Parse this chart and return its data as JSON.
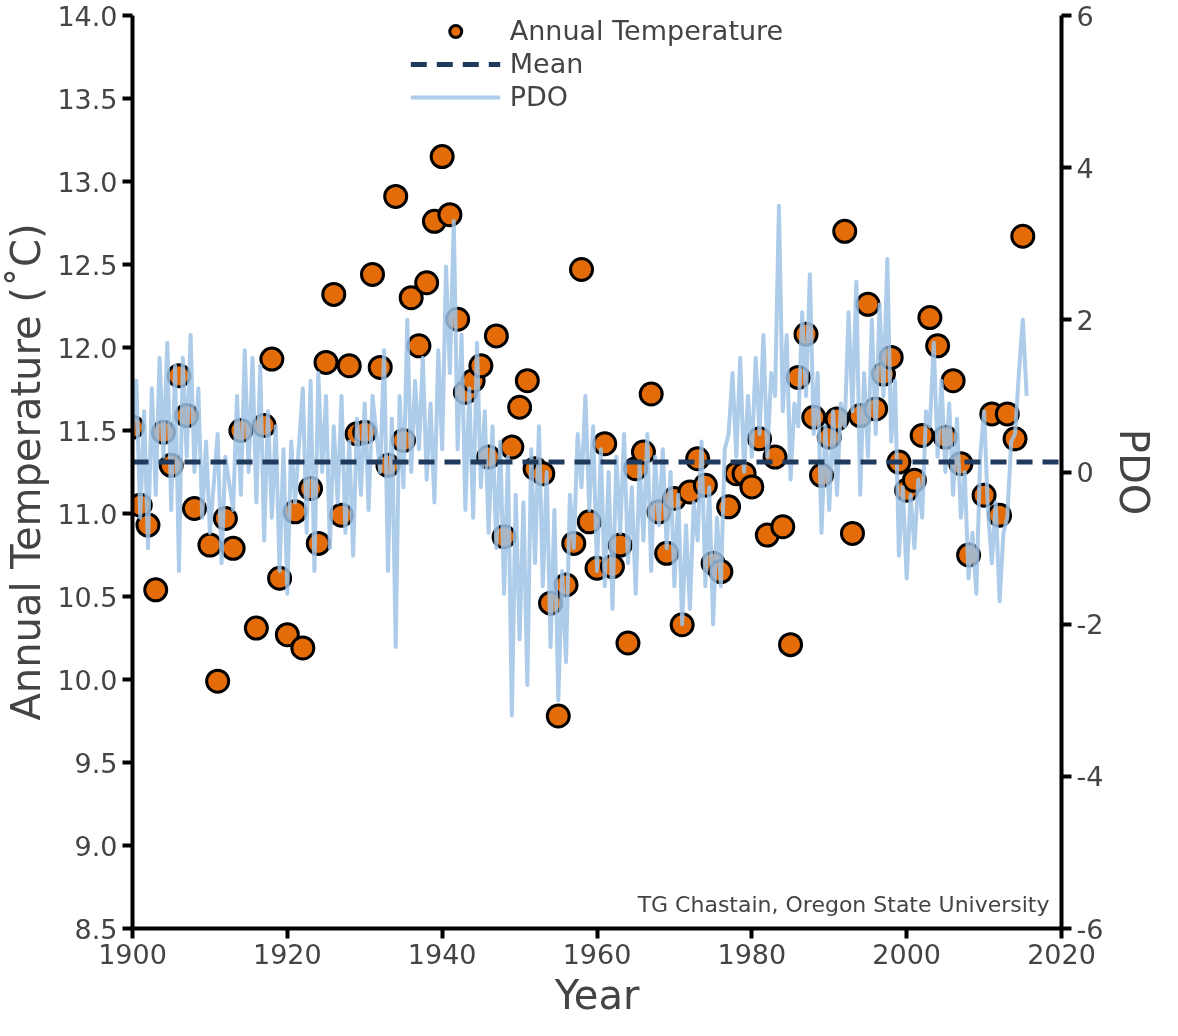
{
  "chart_data": {
    "type": "scatter",
    "xlabel": "Year",
    "ylabel": "Annual Temperature (˚C)",
    "y2label": "PDO",
    "xlim": [
      1900,
      2020
    ],
    "xticks": [
      1900,
      1920,
      1940,
      1960,
      1980,
      2000,
      2020
    ],
    "ylim": [
      8.5,
      14.0
    ],
    "yticks": [
      {
        "value": 8.5,
        "label": "8.5"
      },
      {
        "value": 9.0,
        "label": "9.0"
      },
      {
        "value": 9.5,
        "label": "9.5"
      },
      {
        "value": 10.0,
        "label": "10.0"
      },
      {
        "value": 10.5,
        "label": "10.5"
      },
      {
        "value": 11.0,
        "label": "11.0"
      },
      {
        "value": 11.5,
        "label": "11.5"
      },
      {
        "value": 12.0,
        "label": "12.0"
      },
      {
        "value": 12.5,
        "label": "12.5"
      },
      {
        "value": 13.0,
        "label": "13.0"
      },
      {
        "value": 13.5,
        "label": "13.5"
      },
      {
        "value": 14.0,
        "label": "14.0"
      }
    ],
    "y2lim": [
      -6,
      6
    ],
    "y2ticks": [
      -6,
      -4,
      -2,
      0,
      2,
      4,
      6
    ],
    "grid": false,
    "legend": "top",
    "ref_lines": [
      {
        "axis": "y",
        "value": 11.31,
        "label": "Mean",
        "color": "#1f3a5c",
        "line_style": "dashed"
      }
    ],
    "annotations": [
      {
        "text": "TG Chastain, Oregon State University"
      }
    ],
    "series": [
      {
        "name": "Annual Temperature",
        "marker": "circle",
        "color": "#e36c09",
        "x": [
          1900,
          1901,
          1902,
          1903,
          1904,
          1905,
          1906,
          1907,
          1908,
          1910,
          1911,
          1912,
          1913,
          1914,
          1916,
          1917,
          1918,
          1919,
          1920,
          1921,
          1922,
          1923,
          1924,
          1925,
          1926,
          1927,
          1928,
          1929,
          1930,
          1931,
          1932,
          1933,
          1934,
          1935,
          1936,
          1937,
          1938,
          1939,
          1940,
          1941,
          1942,
          1943,
          1944,
          1945,
          1946,
          1947,
          1948,
          1949,
          1950,
          1951,
          1952,
          1953,
          1954,
          1955,
          1956,
          1957,
          1958,
          1959,
          1960,
          1961,
          1962,
          1963,
          1964,
          1965,
          1966,
          1967,
          1968,
          1969,
          1970,
          1971,
          1972,
          1973,
          1974,
          1975,
          1976,
          1977,
          1978,
          1979,
          1980,
          1981,
          1982,
          1983,
          1984,
          1985,
          1986,
          1987,
          1988,
          1989,
          1990,
          1991,
          1992,
          1993,
          1994,
          1995,
          1996,
          1997,
          1998,
          1999,
          2000,
          2001,
          2002,
          2003,
          2004,
          2005,
          2006,
          2007,
          2008,
          2010,
          2011,
          2012,
          2013,
          2014,
          2015
        ],
        "values": [
          11.52,
          11.05,
          10.93,
          10.54,
          11.49,
          11.29,
          11.83,
          11.59,
          11.03,
          10.81,
          9.99,
          10.97,
          10.79,
          11.5,
          10.31,
          11.53,
          11.93,
          10.61,
          10.27,
          11.01,
          10.19,
          11.15,
          10.82,
          11.91,
          12.32,
          10.99,
          11.89,
          11.48,
          11.49,
          12.44,
          11.88,
          11.29,
          12.91,
          11.44,
          12.3,
          12.01,
          12.39,
          12.76,
          13.15,
          12.8,
          12.17,
          11.73,
          11.8,
          11.89,
          11.34,
          12.07,
          10.86,
          11.4,
          11.64,
          11.8,
          11.27,
          11.24,
          10.46,
          9.78,
          10.57,
          10.82,
          12.47,
          10.95,
          10.67,
          11.42,
          10.68,
          10.81,
          10.22,
          11.27,
          11.37,
          11.72,
          11.01,
          10.76,
          11.09,
          10.33,
          11.13,
          11.33,
          11.17,
          10.7,
          10.65,
          11.04,
          11.24,
          11.24,
          11.16,
          11.45,
          10.87,
          11.34,
          10.92,
          10.21,
          11.82,
          12.08,
          11.58,
          11.23,
          11.46,
          11.57,
          12.7,
          10.88,
          11.59,
          12.26,
          11.63,
          11.84,
          11.94,
          11.31,
          11.14,
          11.2,
          11.47,
          12.18,
          12.01,
          11.46,
          11.8,
          11.3,
          10.75,
          11.11,
          11.6,
          10.99,
          11.6,
          11.45,
          12.67
        ]
      },
      {
        "name": "PDO",
        "type": "line",
        "axis": "y2",
        "color": "#9dc3e6",
        "x": [
          1900,
          1900.5,
          1901,
          1901.5,
          1902,
          1902.5,
          1903,
          1903.5,
          1904,
          1904.5,
          1905,
          1905.5,
          1906,
          1906.5,
          1907,
          1907.5,
          1908,
          1908.5,
          1909,
          1909.5,
          1910,
          1911,
          1911.5,
          1912,
          1913,
          1913.5,
          1914,
          1914.5,
          1915,
          1915.5,
          1916,
          1916.5,
          1917,
          1917.5,
          1918,
          1918.5,
          1919,
          1919.5,
          1920,
          1920.5,
          1921,
          1922,
          1922.5,
          1923,
          1923.5,
          1924,
          1924.5,
          1925,
          1925.5,
          1926,
          1926.5,
          1927,
          1927.5,
          1928,
          1928.5,
          1929,
          1929.5,
          1930,
          1930.5,
          1931,
          1932,
          1932.5,
          1933,
          1933.5,
          1934,
          1934.5,
          1935,
          1935.5,
          1936,
          1936.5,
          1937,
          1937.5,
          1938,
          1938.5,
          1939,
          1939.5,
          1940,
          1940.5,
          1941,
          1941.5,
          1942,
          1942.5,
          1943,
          1943.5,
          1944,
          1944.5,
          1945,
          1945.5,
          1946,
          1946.5,
          1947,
          1947.5,
          1948,
          1948.5,
          1949,
          1949.5,
          1950,
          1950.5,
          1951,
          1951.5,
          1952,
          1952.5,
          1953,
          1953.5,
          1954,
          1954.5,
          1955,
          1955.5,
          1956,
          1956.5,
          1957,
          1957.5,
          1958,
          1958.5,
          1959,
          1959.5,
          1960,
          1960.5,
          1961,
          1961.5,
          1962,
          1962.5,
          1963,
          1963.5,
          1964,
          1964.5,
          1965,
          1965.5,
          1966,
          1966.5,
          1967,
          1967.5,
          1968,
          1968.5,
          1969,
          1969.5,
          1970,
          1970.5,
          1971,
          1971.5,
          1972,
          1972.5,
          1973,
          1973.5,
          1974,
          1974.5,
          1975,
          1975.5,
          1976,
          1976.5,
          1977,
          1977.5,
          1978,
          1978.5,
          1979,
          1979.5,
          1980,
          1980.5,
          1981,
          1981.5,
          1982,
          1982.5,
          1983,
          1983.5,
          1984,
          1984.5,
          1985,
          1985.5,
          1986,
          1986.5,
          1987,
          1987.5,
          1988,
          1988.5,
          1989,
          1989.5,
          1990,
          1990.5,
          1991,
          1991.5,
          1992,
          1992.5,
          1993,
          1993.5,
          1994,
          1994.5,
          1995,
          1995.5,
          1996,
          1996.5,
          1997,
          1997.5,
          1998,
          1998.5,
          1999,
          1999.5,
          2000,
          2000.5,
          2001,
          2001.5,
          2002,
          2002.5,
          2003,
          2003.5,
          2004,
          2004.5,
          2005,
          2005.5,
          2006,
          2006.5,
          2007,
          2007.5,
          2008,
          2008.5,
          2009,
          2009.5,
          2010,
          2010.5,
          2011,
          2011.5,
          2012,
          2012.5,
          2013,
          2013.5,
          2014,
          2014.5,
          2015,
          2015.5
        ],
        "values": [
          0.5,
          1.2,
          -0.6,
          0.8,
          -1.0,
          1.1,
          -0.3,
          1.5,
          0.2,
          1.7,
          -0.5,
          1.4,
          -1.3,
          1.5,
          0.2,
          1.8,
          0.0,
          1.1,
          -0.6,
          0.4,
          -0.8,
          0.5,
          -1.2,
          0.2,
          -0.5,
          1.0,
          -0.3,
          1.6,
          0.0,
          1.5,
          -0.4,
          1.4,
          -0.9,
          0.8,
          -0.6,
          0.6,
          -1.3,
          0.3,
          -1.6,
          0.4,
          -0.4,
          1.1,
          -0.8,
          1.2,
          -1.3,
          1.3,
          0.0,
          1.0,
          -1.0,
          0.6,
          -0.4,
          1.0,
          -0.8,
          0.4,
          -1.1,
          0.7,
          -0.3,
          0.9,
          -0.5,
          1.0,
          0.0,
          1.6,
          -1.3,
          0.7,
          -2.3,
          1.0,
          -0.2,
          2.0,
          0.0,
          1.2,
          0.3,
          1.5,
          -0.1,
          0.9,
          -0.4,
          1.6,
          0.3,
          2.7,
          1.3,
          3.3,
          0.3,
          1.8,
          -0.5,
          1.1,
          -0.6,
          1.7,
          -0.2,
          0.8,
          -0.8,
          0.6,
          -1.0,
          0.4,
          -1.6,
          0.2,
          -3.2,
          -0.3,
          -2.2,
          -0.4,
          -2.8,
          0.3,
          -1.2,
          0.6,
          -1.5,
          0.0,
          -2.3,
          -0.5,
          -3.0,
          -1.3,
          -2.5,
          -0.3,
          -1.0,
          0.5,
          -0.2,
          1.0,
          -0.5,
          0.6,
          -1.3,
          0.3,
          -1.5,
          0.0,
          -1.8,
          0.2,
          -0.8,
          0.5,
          -1.2,
          -0.2,
          -1.6,
          0.1,
          -0.9,
          0.5,
          -1.3,
          0.2,
          -0.7,
          0.3,
          -1.0,
          0.0,
          -1.5,
          -0.3,
          -2.0,
          -0.7,
          -1.8,
          -0.4,
          -0.9,
          0.4,
          -1.5,
          -0.2,
          -2.0,
          -0.6,
          -1.5,
          0.3,
          0.5,
          1.3,
          0.2,
          1.5,
          0.0,
          1.0,
          0.2,
          1.5,
          0.5,
          1.8,
          0.2,
          1.3,
          1.0,
          3.5,
          0.8,
          1.8,
          -0.1,
          0.9,
          0.6,
          2.1,
          1.0,
          2.6,
          0.5,
          1.3,
          -0.8,
          0.6,
          -0.5,
          0.8,
          -0.3,
          0.9,
          0.6,
          2.1,
          0.8,
          2.5,
          -0.3,
          1.3,
          0.2,
          2.0,
          0.5,
          2.2,
          1.0,
          2.8,
          0.4,
          1.2,
          -1.1,
          -0.2,
          -1.4,
          -0.3,
          -1.0,
          -0.1,
          -0.6,
          0.8,
          0.6,
          1.7,
          0.2,
          1.2,
          0.0,
          0.9,
          -0.3,
          0.7,
          -0.6,
          0.0,
          -1.4,
          -0.8,
          -1.6,
          0.2,
          0.8,
          -0.5,
          -1.2,
          -0.4,
          -1.7,
          -0.8,
          -0.6,
          0.4,
          0.5,
          1.3,
          2.0,
          1.0
        ]
      }
    ]
  }
}
